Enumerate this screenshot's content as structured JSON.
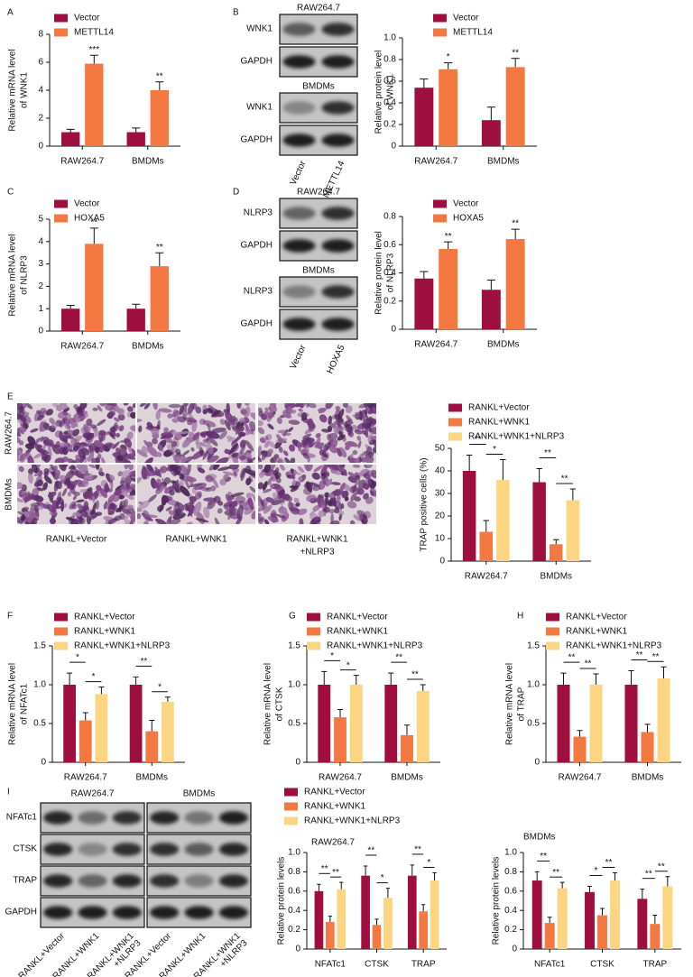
{
  "panel_labels": [
    "A",
    "B",
    "C",
    "D",
    "E",
    "F",
    "G",
    "H",
    "I"
  ],
  "blot_B": {
    "groups": [
      "RAW264.7",
      "BMDMs"
    ],
    "rows": [
      "WNK1",
      "GAPDH"
    ],
    "lanes": [
      "Vector",
      "METTL14"
    ]
  },
  "blot_D": {
    "groups": [
      "RAW264.7",
      "BMDMs"
    ],
    "rows": [
      "NLRP3",
      "GAPDH"
    ],
    "lanes": [
      "Vector",
      "HOXA5"
    ]
  },
  "micrograph_E": {
    "rows": [
      "RAW264.7",
      "BMDMs"
    ],
    "columns": [
      [
        "RANKL+Vector"
      ],
      [
        "RANKL+WNK1"
      ],
      [
        "RANKL+WNK1",
        "+NLRP3"
      ]
    ]
  },
  "blot_I": {
    "groups": [
      "RAW264.7",
      "BMDMs"
    ],
    "rows": [
      "NFATc1",
      "CTSK",
      "TRAP",
      "GAPDH"
    ],
    "lanes": [
      [
        "RANKL+Vector"
      ],
      [
        "RANKL+WNK1"
      ],
      [
        "RANKL+WNK1",
        "+NLRP3"
      ]
    ]
  },
  "chart_data": [
    {
      "type": "bar",
      "y_label": [
        "Relative mRNA level",
        "of WNK1"
      ],
      "categories": [
        "RAW264.7",
        "BMDMs"
      ],
      "series": [
        {
          "name": "Vector",
          "color": "#9e0f3f",
          "values": [
            1,
            1
          ],
          "errors": [
            0.2,
            0.3
          ]
        },
        {
          "name": "METTL14",
          "color": "#f37842",
          "values": [
            5.9,
            4.0
          ],
          "errors": [
            0.6,
            0.6
          ],
          "labels": [
            "***",
            "**"
          ]
        }
      ],
      "ylim": [
        0,
        8
      ],
      "yticks": [
        0,
        2,
        4,
        6,
        8
      ]
    },
    {
      "type": "bar",
      "y_label": [
        "Relative protein level",
        "of WNK1"
      ],
      "categories": [
        "RAW264.7",
        "BMDMs"
      ],
      "series": [
        {
          "name": "Vector",
          "color": "#9e0f3f",
          "values": [
            0.54,
            0.24
          ],
          "errors": [
            0.08,
            0.12
          ]
        },
        {
          "name": "METTL14",
          "color": "#f37842",
          "values": [
            0.71,
            0.73
          ],
          "errors": [
            0.06,
            0.08
          ],
          "labels": [
            "*",
            "**"
          ]
        }
      ],
      "ylim": [
        0,
        1
      ],
      "yticks": [
        0,
        0.2,
        0.4,
        0.6,
        0.8,
        {
          "value": 1,
          "label": "1.0"
        }
      ]
    },
    {
      "type": "bar",
      "y_label": [
        "Relative mRNA level",
        "of NLRP3"
      ],
      "categories": [
        "RAW264.7",
        "BMDMs"
      ],
      "series": [
        {
          "name": "Vector",
          "color": "#9e0f3f",
          "values": [
            1,
            1
          ],
          "errors": [
            0.15,
            0.2
          ]
        },
        {
          "name": "HOXA5",
          "color": "#f37842",
          "values": [
            3.9,
            2.9
          ],
          "errors": [
            0.7,
            0.6
          ],
          "labels": [
            "**",
            "**"
          ]
        }
      ],
      "ylim": [
        0,
        5
      ],
      "yticks": [
        0,
        1,
        2,
        3,
        4,
        5
      ]
    },
    {
      "type": "bar",
      "y_label": [
        "Relative protein level",
        "of NLRP3"
      ],
      "categories": [
        "RAW264.7",
        "BMDMs"
      ],
      "series": [
        {
          "name": "Vector",
          "color": "#9e0f3f",
          "values": [
            0.36,
            0.28
          ],
          "errors": [
            0.05,
            0.07
          ]
        },
        {
          "name": "HOXA5",
          "color": "#f37842",
          "values": [
            0.57,
            0.64
          ],
          "errors": [
            0.05,
            0.07
          ],
          "labels": [
            "**",
            "**"
          ]
        }
      ],
      "ylim": [
        0,
        0.8
      ],
      "yticks": [
        0,
        0.2,
        0.4,
        0.6,
        0.8
      ]
    },
    {
      "type": "bar",
      "y_label": [
        "TRAP positive cells (%)"
      ],
      "categories": [
        "RAW264.7",
        "BMDMs"
      ],
      "series": [
        {
          "name": "RANKL+Vector",
          "color": "#9e0f3f",
          "values": [
            40,
            35
          ],
          "errors": [
            7,
            6
          ]
        },
        {
          "name": "RANKL+WNK1",
          "color": "#f37842",
          "values": [
            13,
            7.5
          ],
          "errors": [
            5,
            2
          ]
        },
        {
          "name": "RANKL+WNK1+NLRP3",
          "color": "#fbd581",
          "values": [
            36,
            27
          ],
          "errors": [
            9,
            5
          ]
        }
      ],
      "brackets": [
        [
          "**",
          "*"
        ],
        [
          "**",
          "**"
        ]
      ],
      "ylim": [
        0,
        50
      ],
      "yticks": [
        0,
        10,
        20,
        30,
        40,
        50
      ]
    },
    {
      "type": "bar",
      "y_label": [
        "Relative mRNA level",
        "of NFATc1"
      ],
      "categories": [
        "RAW264.7",
        "BMDMs"
      ],
      "series": [
        {
          "name": "RANKL+Vector",
          "color": "#9e0f3f",
          "values": [
            1,
            1
          ],
          "errors": [
            0.15,
            0.1
          ]
        },
        {
          "name": "RANKL+WNK1",
          "color": "#f37842",
          "values": [
            0.54,
            0.4
          ],
          "errors": [
            0.1,
            0.14
          ]
        },
        {
          "name": "RANKL+WNK1+NLRP3",
          "color": "#fbd581",
          "values": [
            0.88,
            0.78
          ],
          "errors": [
            0.09,
            0.06
          ]
        }
      ],
      "brackets": [
        [
          "*",
          "*"
        ],
        [
          "**",
          "*"
        ]
      ],
      "ylim": [
        0,
        1.5
      ],
      "yticks": [
        0,
        0.5,
        {
          "value": 1,
          "label": "1.0"
        },
        1.5
      ]
    },
    {
      "type": "bar",
      "y_label": [
        "Relative mRNA level",
        "of CTSK"
      ],
      "categories": [
        "RAW264.7",
        "BMDMs"
      ],
      "series": [
        {
          "name": "RANKL+Vector",
          "color": "#9e0f3f",
          "values": [
            1,
            1
          ],
          "errors": [
            0.17,
            0.15
          ]
        },
        {
          "name": "RANKL+WNK1",
          "color": "#f37842",
          "values": [
            0.58,
            0.35
          ],
          "errors": [
            0.1,
            0.13
          ]
        },
        {
          "name": "RANKL+WNK1+NLRP3",
          "color": "#fbd581",
          "values": [
            1.0,
            0.92
          ],
          "errors": [
            0.12,
            0.08
          ]
        }
      ],
      "brackets": [
        [
          "*",
          "*"
        ],
        [
          "**",
          "**"
        ]
      ],
      "ylim": [
        0,
        1.5
      ],
      "yticks": [
        0,
        0.5,
        {
          "value": 1,
          "label": "1.0"
        },
        1.5
      ]
    },
    {
      "type": "bar",
      "y_label": [
        "Relative mRNA level",
        "of TRAP"
      ],
      "categories": [
        "RAW264.7",
        "BMDMs"
      ],
      "series": [
        {
          "name": "RANKL+Vector",
          "color": "#9e0f3f",
          "values": [
            1,
            1
          ],
          "errors": [
            0.15,
            0.18
          ]
        },
        {
          "name": "RANKL+WNK1",
          "color": "#f37842",
          "values": [
            0.33,
            0.39
          ],
          "errors": [
            0.08,
            0.1
          ]
        },
        {
          "name": "RANKL+WNK1+NLRP3",
          "color": "#fbd581",
          "values": [
            1.0,
            1.08
          ],
          "errors": [
            0.14,
            0.15
          ]
        }
      ],
      "brackets": [
        [
          "**",
          "**"
        ],
        [
          "**",
          "**"
        ]
      ],
      "ylim": [
        0,
        1.5
      ],
      "yticks": [
        0,
        0.5,
        {
          "value": 1,
          "label": "1.0"
        },
        1.5
      ]
    },
    {
      "type": "bar",
      "subtitle": "RAW264.7",
      "y_label": [
        "Relative protein levels"
      ],
      "categories": [
        "NFATc1",
        "CTSK",
        "TRAP"
      ],
      "series": [
        {
          "name": "RANKL+Vector",
          "color": "#9e0f3f",
          "values": [
            0.6,
            0.76,
            0.76
          ],
          "errors": [
            0.07,
            0.1,
            0.11
          ]
        },
        {
          "name": "RANKL+WNK1",
          "color": "#f37842",
          "values": [
            0.28,
            0.25,
            0.39
          ],
          "errors": [
            0.06,
            0.06,
            0.07
          ]
        },
        {
          "name": "RANKL+WNK1+NLRP3",
          "color": "#fbd581",
          "values": [
            0.62,
            0.53,
            0.71
          ],
          "errors": [
            0.07,
            0.1,
            0.08
          ]
        }
      ],
      "brackets": [
        [
          "**",
          "**"
        ],
        [
          "**",
          "*"
        ],
        [
          "**",
          "*"
        ]
      ],
      "ylim": [
        0,
        1
      ],
      "yticks": [
        0,
        0.2,
        0.4,
        0.6,
        0.8,
        {
          "value": 1,
          "label": "1.0"
        }
      ]
    },
    {
      "type": "bar",
      "subtitle": "BMDMs",
      "y_label": [
        "Relative protein levels"
      ],
      "categories": [
        "NFATc1",
        "CTSK",
        "TRAP"
      ],
      "series": [
        {
          "color": "#9e0f3f",
          "values": [
            0.71,
            0.59,
            0.52
          ],
          "errors": [
            0.09,
            0.06,
            0.1
          ]
        },
        {
          "color": "#f37842",
          "values": [
            0.27,
            0.35,
            0.26
          ],
          "errors": [
            0.06,
            0.07,
            0.09
          ]
        },
        {
          "color": "#fbd581",
          "values": [
            0.63,
            0.71,
            0.65
          ],
          "errors": [
            0.06,
            0.08,
            0.1
          ]
        }
      ],
      "brackets": [
        [
          "**",
          "**"
        ],
        [
          "*",
          "**"
        ],
        [
          "**",
          "**"
        ]
      ],
      "ylim": [
        0,
        1
      ],
      "yticks": [
        0,
        0.2,
        0.4,
        0.6,
        0.8,
        {
          "value": 1,
          "label": "1.0"
        }
      ]
    }
  ]
}
